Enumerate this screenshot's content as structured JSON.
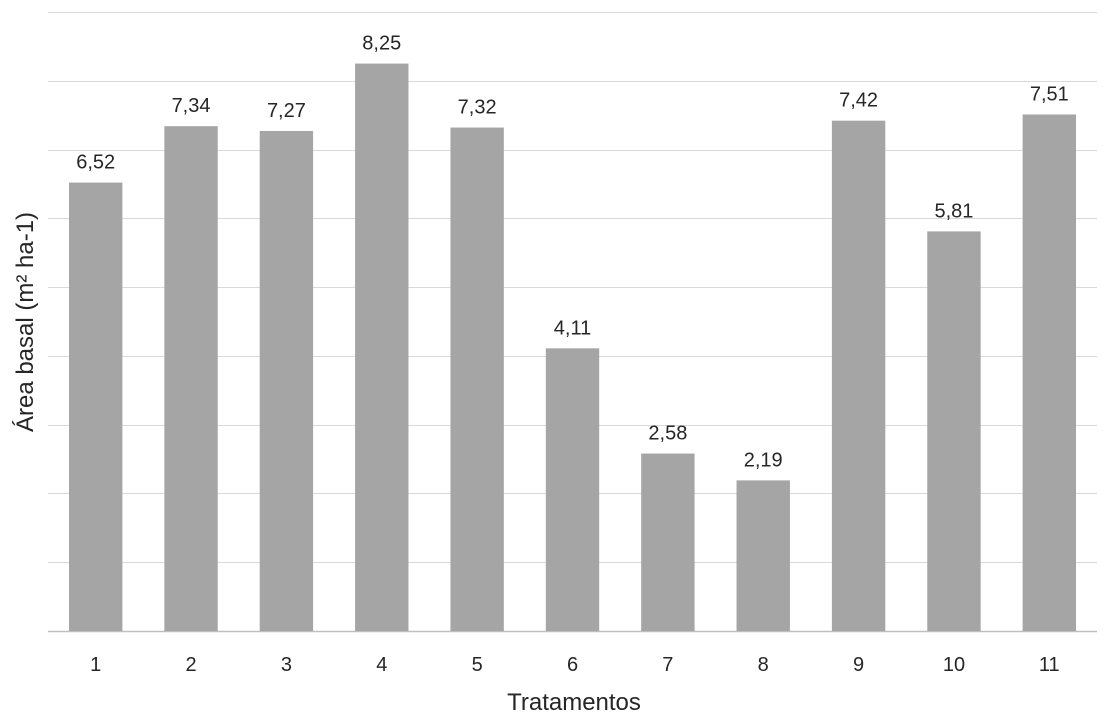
{
  "chart_data": {
    "type": "bar",
    "categories": [
      "1",
      "2",
      "3",
      "4",
      "5",
      "6",
      "7",
      "8",
      "9",
      "10",
      "11"
    ],
    "values": [
      6.52,
      7.34,
      7.27,
      8.25,
      7.32,
      4.11,
      2.58,
      2.19,
      7.42,
      5.81,
      7.51
    ],
    "value_labels": [
      "6,52",
      "7,34",
      "7,27",
      "8,25",
      "7,32",
      "4,11",
      "2,58",
      "2,19",
      "7,42",
      "5,81",
      "7,51"
    ],
    "title": "",
    "xlabel": "Tratamentos",
    "ylabel": "Área basal (m² ha-1)",
    "ylim": [
      0,
      9
    ],
    "y_gridline_step": 1,
    "y_tick_labels_shown": false,
    "grid": true,
    "legend": "none",
    "bar_color": "#a5a5a5",
    "grid_color": "#d9d9d9"
  }
}
